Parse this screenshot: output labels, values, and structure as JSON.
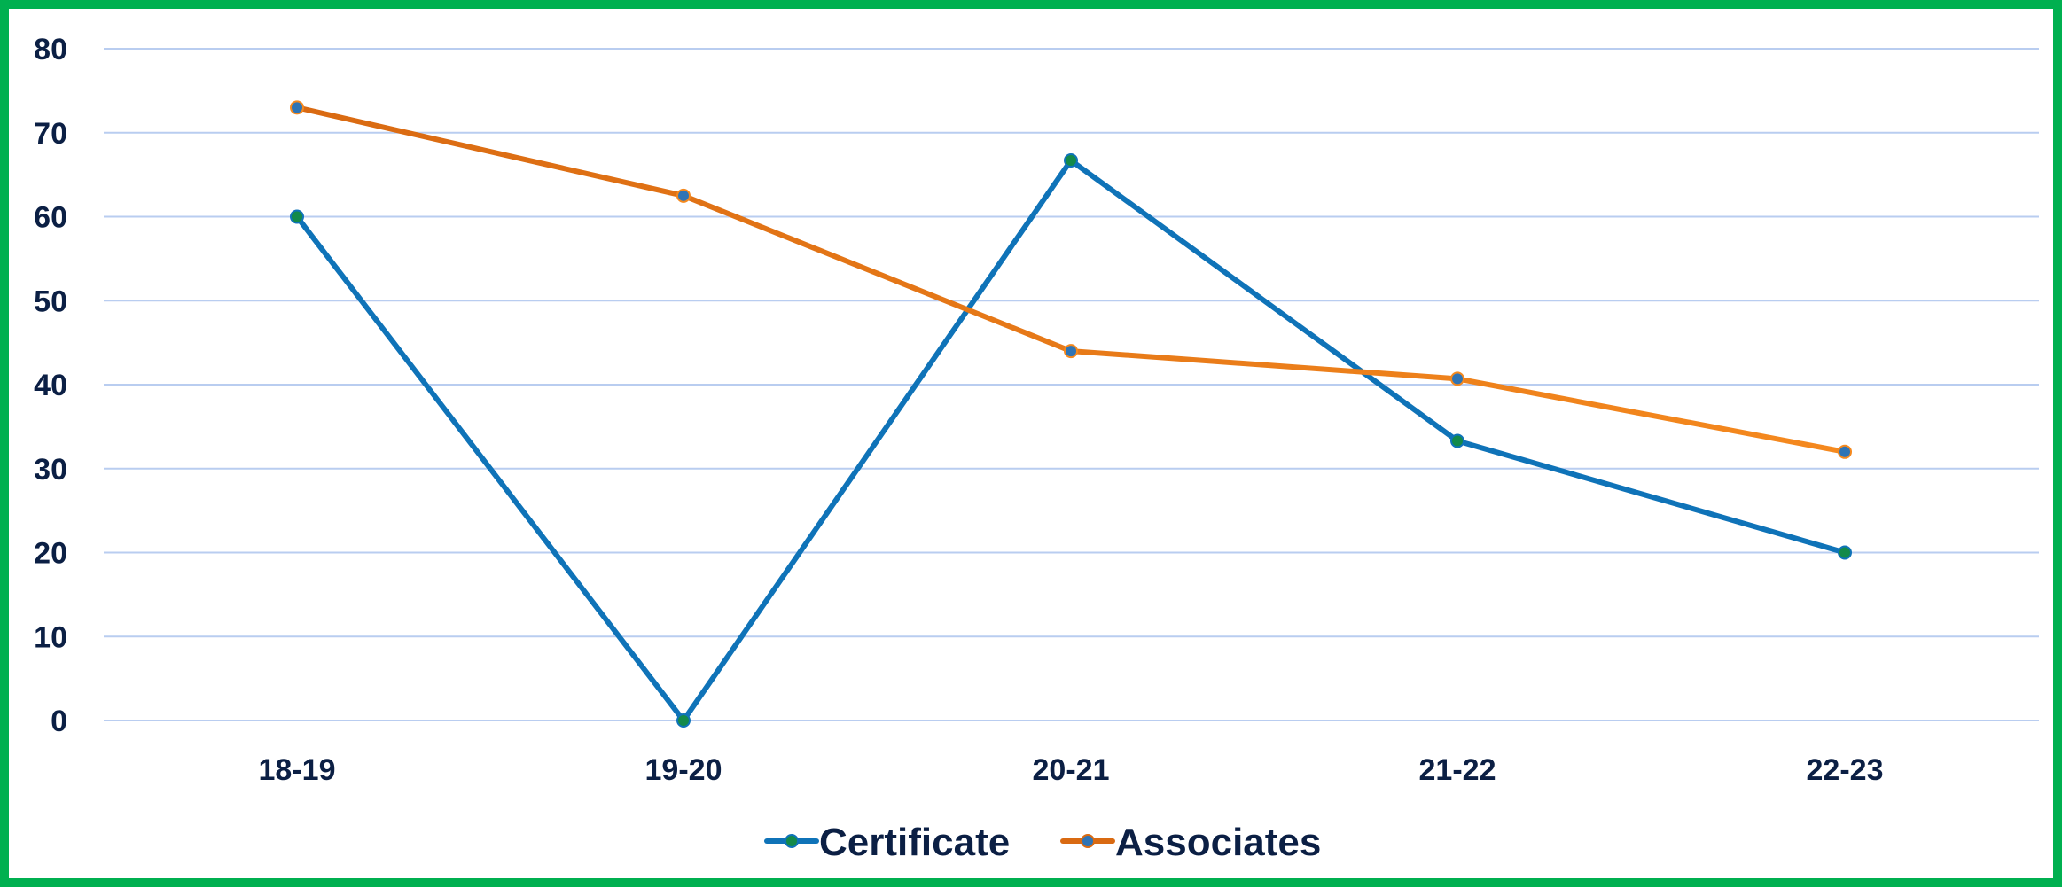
{
  "chart_data": {
    "type": "line",
    "categories": [
      "18-19",
      "19-20",
      "20-21",
      "21-22",
      "22-23"
    ],
    "series": [
      {
        "name": "Certificate",
        "values": [
          60,
          0,
          66.7,
          33.3,
          20
        ],
        "color": "#0f73b8",
        "marker_color": "#138a4a"
      },
      {
        "name": "Associates",
        "values": [
          73,
          62.5,
          44,
          40.7,
          32
        ],
        "color_start": "#d96a12",
        "color_end": "#f5891e",
        "marker_color": "#2f74b5"
      }
    ],
    "yticks": [
      0,
      10,
      20,
      30,
      40,
      50,
      60,
      70,
      80
    ],
    "ylim": [
      0,
      80
    ],
    "grid": true,
    "legend": "bottom-center",
    "frame_color": "#00b050",
    "grid_color": "#b9cdf0",
    "text_color": "#0b1f44"
  }
}
